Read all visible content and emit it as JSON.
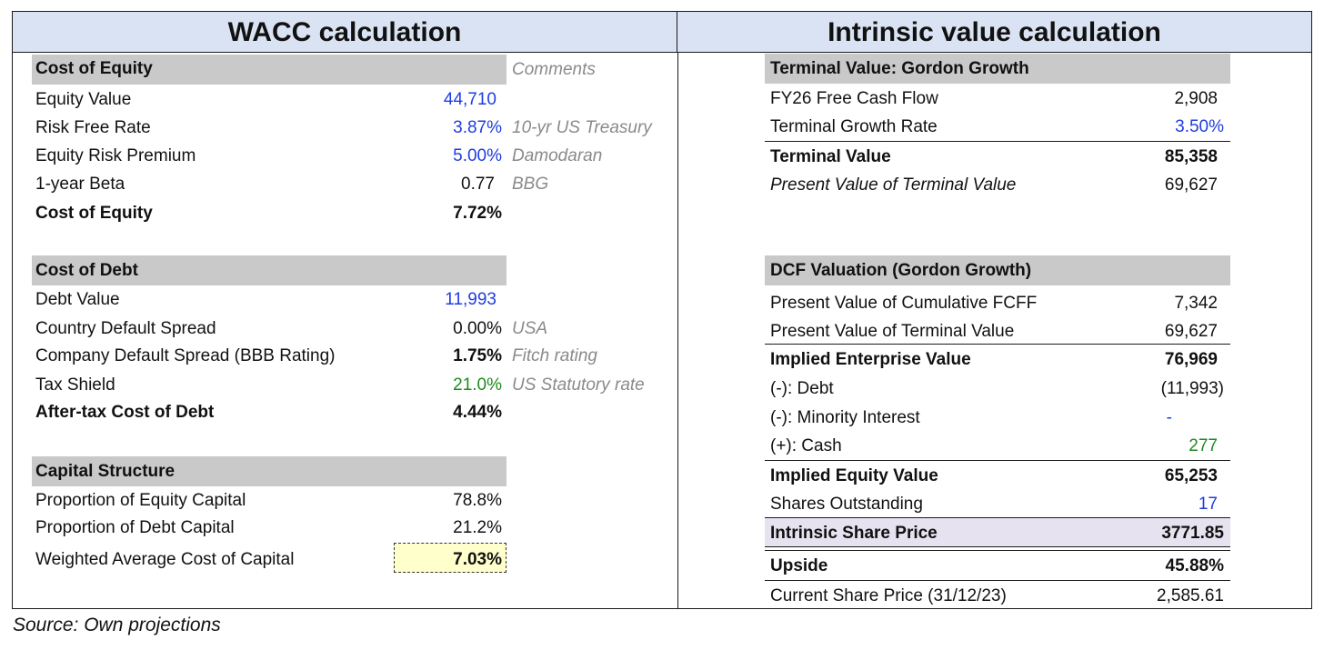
{
  "headers": {
    "left": "WACC calculation",
    "right": "Intrinsic value calculation"
  },
  "cost_of_equity": {
    "title": "Cost of Equity",
    "comments_label": "Comments",
    "rows": [
      {
        "label": "Equity Value",
        "value": "44,710",
        "comment": ""
      },
      {
        "label": "Risk Free Rate",
        "value": "3.87%",
        "comment": "10-yr US Treasury"
      },
      {
        "label": "Equity Risk Premium",
        "value": "5.00%",
        "comment": "Damodaran"
      },
      {
        "label": "1-year Beta",
        "value": "0.77",
        "comment": "BBG"
      },
      {
        "label": "Cost of Equity",
        "value": "7.72%",
        "comment": ""
      }
    ]
  },
  "cost_of_debt": {
    "title": "Cost of Debt",
    "rows": [
      {
        "label": "Debt Value",
        "value": "11,993",
        "comment": ""
      },
      {
        "label": "Country Default Spread",
        "value": "0.00%",
        "comment": "USA"
      },
      {
        "label": "Company Default Spread (BBB Rating)",
        "value": "1.75%",
        "comment": "Fitch rating"
      },
      {
        "label": "Tax Shield",
        "value": "21.0%",
        "comment": "US Statutory rate"
      },
      {
        "label": "After-tax Cost of Debt",
        "value": "4.44%",
        "comment": ""
      }
    ]
  },
  "capital_structure": {
    "title": "Capital Structure",
    "rows": [
      {
        "label": "Proportion of Equity Capital",
        "value": "78.8%"
      },
      {
        "label": "Proportion of Debt Capital",
        "value": "21.2%"
      },
      {
        "label": "Weighted Average Cost of Capital",
        "value": "7.03%"
      }
    ]
  },
  "terminal_value": {
    "title": "Terminal Value: Gordon Growth",
    "rows": [
      {
        "label": "FY26 Free Cash Flow",
        "value": "2,908"
      },
      {
        "label": "Terminal Growth Rate",
        "value": "3.50%"
      },
      {
        "label": "Terminal Value",
        "value": "85,358"
      },
      {
        "label": "Present Value of Terminal Value",
        "value": "69,627"
      }
    ]
  },
  "dcf_valuation": {
    "title": "DCF Valuation (Gordon Growth)",
    "rows": [
      {
        "label": "Present Value of Cumulative FCFF",
        "value": "7,342"
      },
      {
        "label": "Present Value of Terminal Value",
        "value": "69,627"
      },
      {
        "label": "Implied Enterprise Value",
        "value": "76,969"
      },
      {
        "label": "(-): Debt",
        "value": "(11,993)"
      },
      {
        "label": "(-): Minority Interest",
        "value": "-"
      },
      {
        "label": "(+): Cash",
        "value": "277"
      },
      {
        "label": "Implied Equity Value",
        "value": "65,253"
      },
      {
        "label": "Shares Outstanding",
        "value": "17"
      },
      {
        "label": "Intrinsic Share Price",
        "value": "3771.85"
      },
      {
        "label": "Upside",
        "value": "45.88%"
      },
      {
        "label": "Current Share Price (31/12/23)",
        "value": "2,585.61"
      }
    ]
  },
  "colors": {
    "header_bg": "#dae3f3",
    "section_bar": "#c9c9c9",
    "input_blue": "#1f3de0",
    "link_green": "#1f8a1f",
    "comment_gray": "#8a8a8a",
    "wacc_highlight": "#ffffcc",
    "share_price_bar": "#e6e2ef"
  },
  "footer": {
    "source": "Source: Own projections"
  }
}
